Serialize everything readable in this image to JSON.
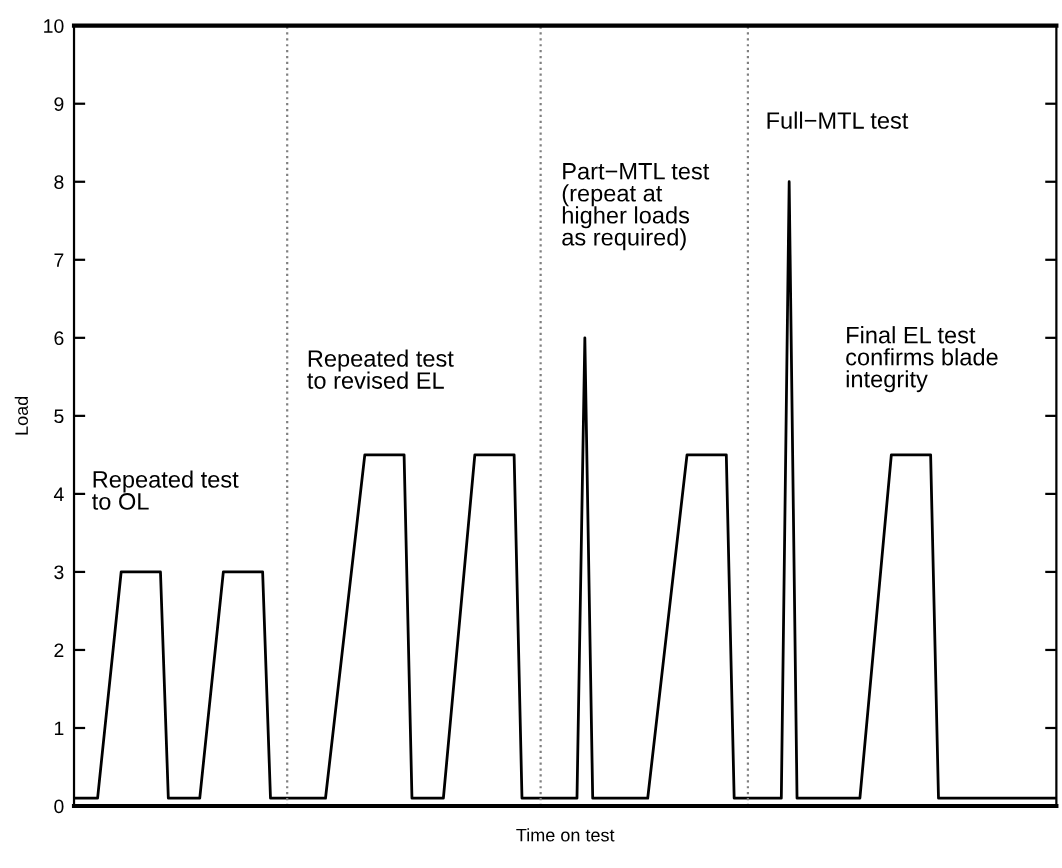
{
  "chart_data": {
    "type": "line",
    "xlabel": "Time on test",
    "ylabel": "Load",
    "ylim": [
      0,
      10
    ],
    "yticks": [
      0,
      1,
      2,
      3,
      4,
      5,
      6,
      7,
      8,
      9,
      10
    ],
    "tick_labels": "y",
    "grid": false,
    "marker": "none",
    "line_style": "solid",
    "categories": [
      null,
      null,
      null,
      null,
      null,
      null,
      null,
      null,
      null,
      null,
      null,
      null,
      null,
      null,
      null,
      null,
      null,
      null,
      null,
      null,
      null,
      null,
      null,
      null,
      null,
      null,
      null,
      null,
      null,
      null,
      null,
      null,
      null,
      null,
      null,
      null,
      null,
      null,
      null,
      null,
      null,
      null,
      null,
      null,
      null,
      null,
      null,
      null,
      null,
      null,
      null,
      null,
      null,
      null,
      null,
      null,
      null,
      null,
      null,
      null,
      null,
      null,
      null,
      null,
      null,
      null,
      null,
      null,
      null,
      null,
      null,
      null,
      null,
      null,
      null,
      null,
      null,
      null,
      null,
      null,
      null,
      null,
      null,
      null,
      null,
      null,
      null,
      null,
      null,
      null,
      null,
      null,
      null,
      null,
      null,
      null,
      null,
      null,
      null,
      null,
      null,
      null,
      null,
      null,
      null,
      null,
      null,
      null,
      null,
      null,
      null,
      null,
      null,
      null,
      null,
      null,
      null,
      null,
      null,
      null,
      null,
      null,
      null,
      null,
      null,
      null
    ],
    "series": [
      {
        "color": "#000000",
        "values": [
          0.1,
          0.1,
          0.1,
          0.1,
          1.07,
          2.03,
          3,
          3,
          3,
          3,
          3,
          3,
          0.1,
          0.1,
          0.1,
          0.1,
          0.1,
          1.07,
          2.03,
          3,
          3,
          3,
          3,
          3,
          3,
          0.1,
          0.1,
          0.1,
          0.1,
          0.1,
          0.1,
          0.1,
          0.1,
          0.98,
          1.86,
          2.74,
          3.62,
          4.5,
          4.5,
          4.5,
          4.5,
          4.5,
          4.5,
          0.1,
          0.1,
          0.1,
          0.1,
          0.1,
          1.2,
          2.3,
          3.4,
          4.5,
          4.5,
          4.5,
          4.5,
          4.5,
          4.5,
          0.1,
          0.1,
          0.1,
          0.1,
          0.1,
          0.1,
          0.1,
          0.1,
          6,
          0.1,
          0.1,
          0.1,
          0.1,
          0.1,
          0.1,
          0.1,
          0.1,
          0.98,
          1.86,
          2.74,
          3.62,
          4.5,
          4.5,
          4.5,
          4.5,
          4.5,
          4.5,
          0.1,
          0.1,
          0.1,
          0.1,
          0.1,
          0.1,
          0.1,
          8,
          0.1,
          0.1,
          0.1,
          0.1,
          0.1,
          0.1,
          0.1,
          0.1,
          0.1,
          1.2,
          2.3,
          3.4,
          4.5,
          4.5,
          4.5,
          4.5,
          4.5,
          4.5,
          0.1,
          0.1,
          0.1,
          0.1,
          0.1,
          0.1,
          0.1,
          0.1,
          0.1,
          0.1,
          0.1,
          0.1,
          0.1,
          0.1,
          0.1,
          0.1
        ]
      }
    ],
    "annotations": [
      "Repeated test\nto OL",
      "Repeated test\nto revised EL",
      "Part−MTL test\n(repeat at\nhigher loads\nas required)",
      "Full−MTL test",
      "Final EL test\nconfirms blade\nintegrity"
    ]
  }
}
